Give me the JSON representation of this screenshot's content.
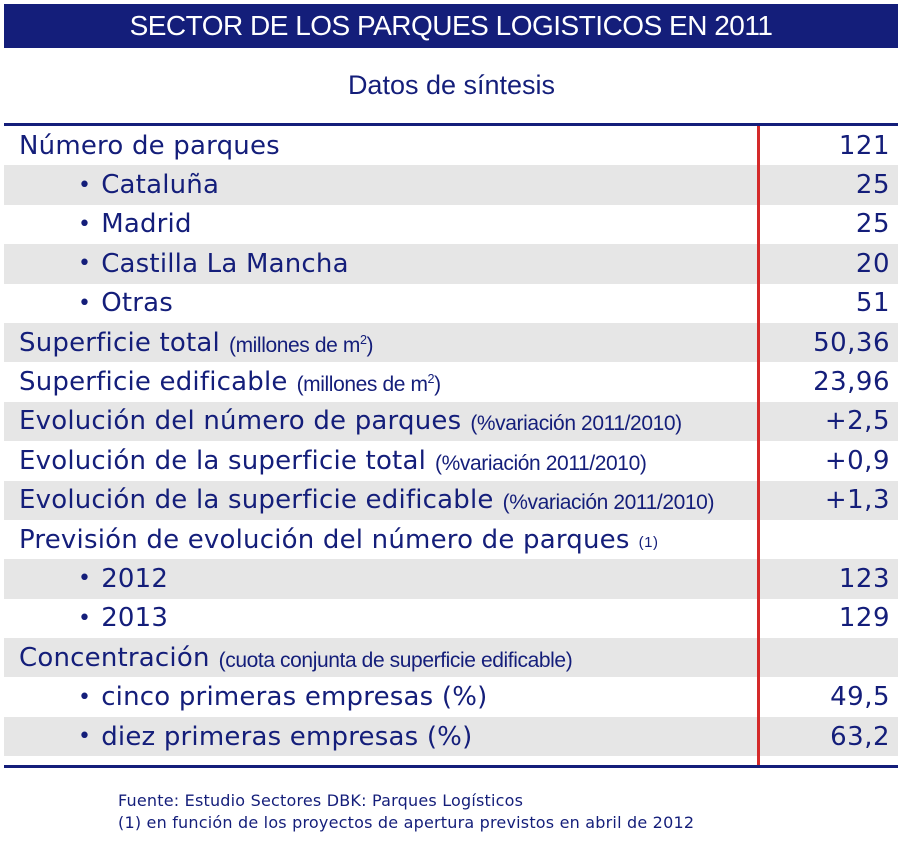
{
  "title": "SECTOR DE LOS PARQUES LOGISTICOS EN 2011",
  "subtitle": "Datos de síntesis",
  "rows": [
    {
      "label": "Número de parques",
      "note": "",
      "value": "121"
    },
    {
      "label": "Cataluña",
      "value": "25"
    },
    {
      "label": "Madrid",
      "value": "25"
    },
    {
      "label": "Castilla La Mancha",
      "value": "20"
    },
    {
      "label": "Otras",
      "value": "51"
    },
    {
      "label": "Superficie total",
      "note": "(millones de m",
      "note_sup": "2",
      "note_end": ")",
      "value": "50,36"
    },
    {
      "label": "Superficie edificable",
      "note": "(millones de m",
      "note_sup": "2",
      "note_end": ")",
      "value": "23,96"
    },
    {
      "label": "Evolución del número de parques",
      "note": "(%variación 2011/2010)",
      "value": "+2,5"
    },
    {
      "label": "Evolución de la superficie total",
      "note": "(%variación 2011/2010)",
      "value": "+0,9"
    },
    {
      "label": "Evolución de la superficie edificable",
      "note": "(%variación 2011/2010)",
      "value": "+1,3"
    },
    {
      "label": "Previsión de evolución del número de parques",
      "note": "(1)",
      "value": ""
    },
    {
      "label": "2012",
      "value": "123"
    },
    {
      "label": "2013",
      "value": "129"
    },
    {
      "label": "Concentración",
      "note": "(cuota conjunta de superficie edificable)",
      "value": ""
    },
    {
      "label": "cinco primeras empresas (%)",
      "value": "49,5"
    },
    {
      "label": "diez primeras empresas (%)",
      "value": "63,2"
    }
  ],
  "bullet_glyph": "•",
  "footer": {
    "source": "Fuente: Estudio Sectores DBK: Parques Logísticos",
    "note": "(1) en función de los proyectos de apertura previstos en abril de 2012"
  },
  "colors": {
    "navy": "#141e7a",
    "divider": "#d42a2a",
    "shade": "#e6e6e6"
  }
}
